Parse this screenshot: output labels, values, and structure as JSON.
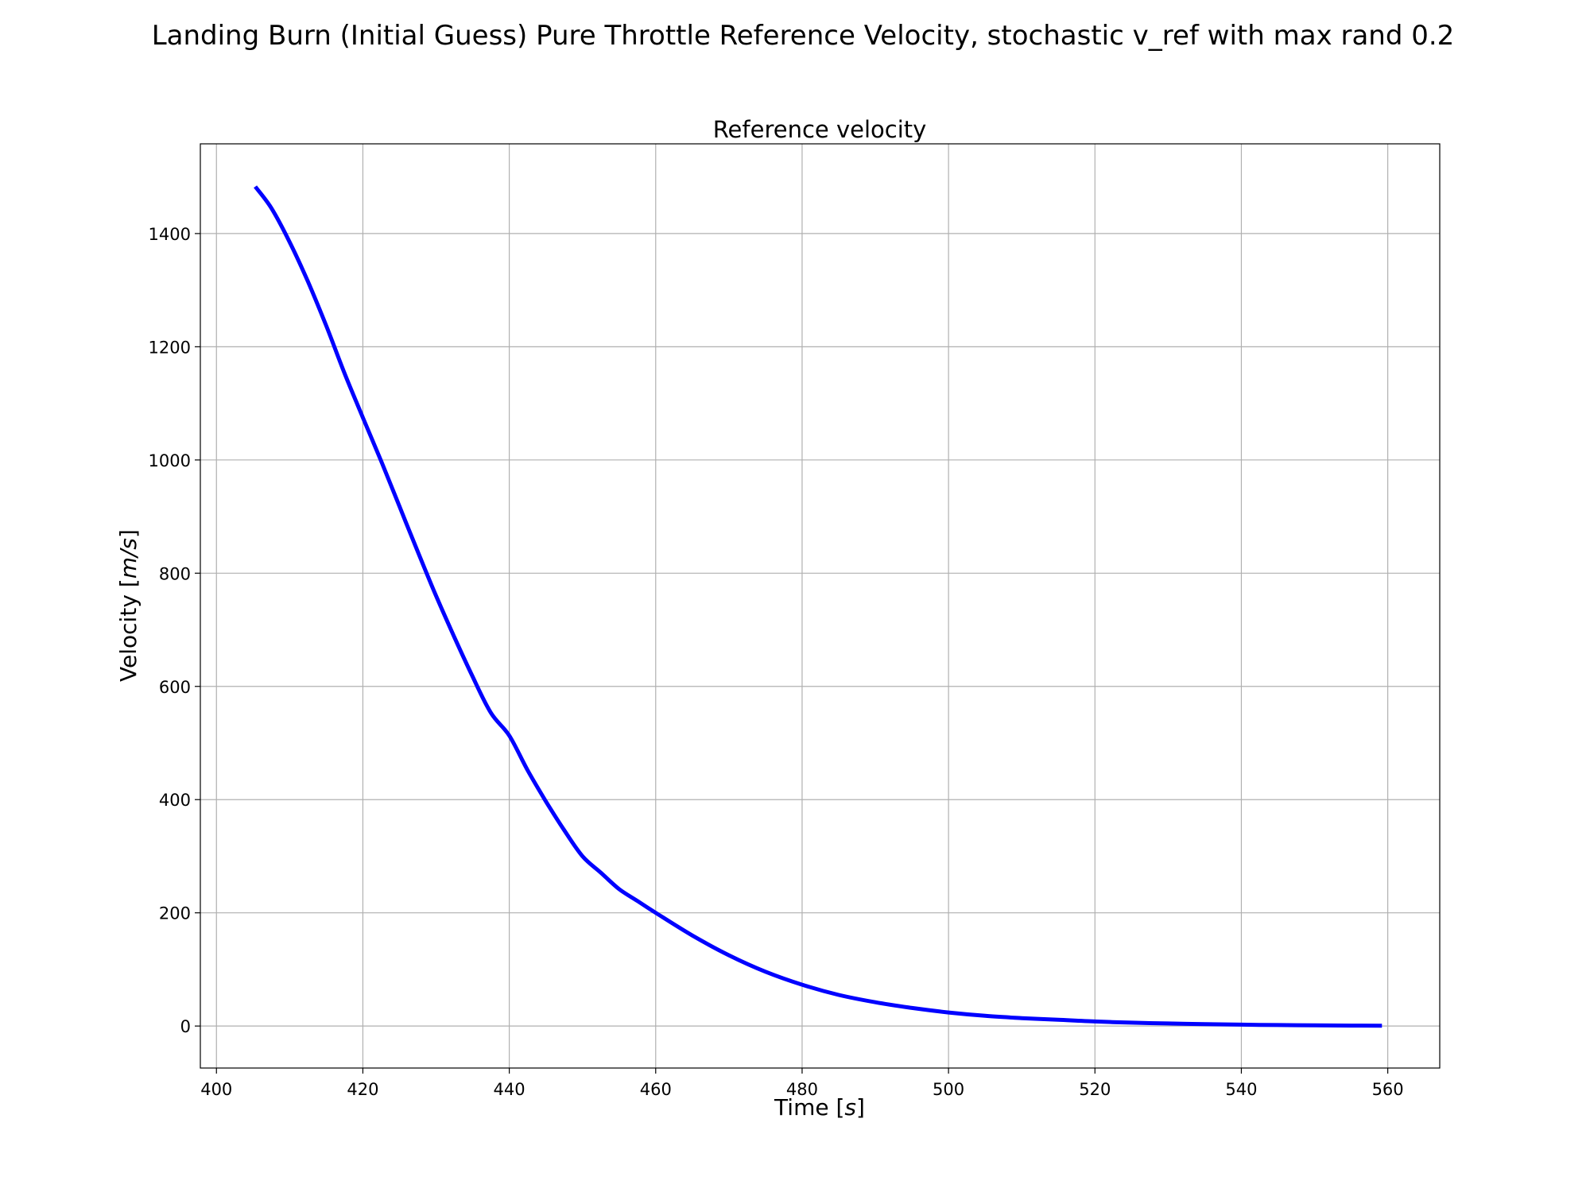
{
  "figure": {
    "suptitle": "Landing Burn (Initial Guess) Pure Throttle Reference Velocity, stochastic v_ref with max rand 0.2"
  },
  "chart_data": {
    "type": "line",
    "title": "Reference velocity",
    "xlabel_text": "Time [",
    "xlabel_unit": "s",
    "xlabel_close": "]",
    "ylabel_text": "Velocity [",
    "ylabel_unit": "m/s",
    "ylabel_close": "]",
    "xlim": [
      397.8,
      567.1
    ],
    "ylim": [
      -74.2,
      1558.5
    ],
    "x_ticks": [
      400,
      420,
      440,
      460,
      480,
      500,
      520,
      540,
      560
    ],
    "y_ticks": [
      0,
      200,
      400,
      600,
      800,
      1000,
      1200,
      1400
    ],
    "grid": true,
    "legend": false,
    "colors": {
      "line": "#0000ff",
      "grid": "#b0b0b0"
    },
    "series": [
      {
        "x": [
          405.3,
          407.5,
          410,
          412.5,
          415,
          417.5,
          420,
          422.5,
          425,
          427.5,
          430,
          432.5,
          435,
          437.5,
          440,
          442.5,
          445,
          447.5,
          450,
          452.5,
          455,
          457.5,
          460,
          465,
          470,
          475,
          480,
          485,
          490,
          495,
          500,
          505,
          510,
          515,
          520,
          525,
          530,
          535,
          540,
          545,
          550,
          555,
          559.2
        ],
        "y": [
          1483,
          1445,
          1385,
          1315,
          1237,
          1153,
          1075,
          998,
          918,
          838,
          760,
          687,
          617,
          553,
          513,
          452,
          397,
          346,
          300,
          271,
          242,
          221,
          200,
          160,
          125,
          96,
          73,
          55,
          42,
          32,
          24,
          18,
          14,
          11,
          8,
          6,
          4.5,
          3.3,
          2.4,
          1.7,
          1.2,
          0.8,
          0.5
        ]
      }
    ]
  }
}
